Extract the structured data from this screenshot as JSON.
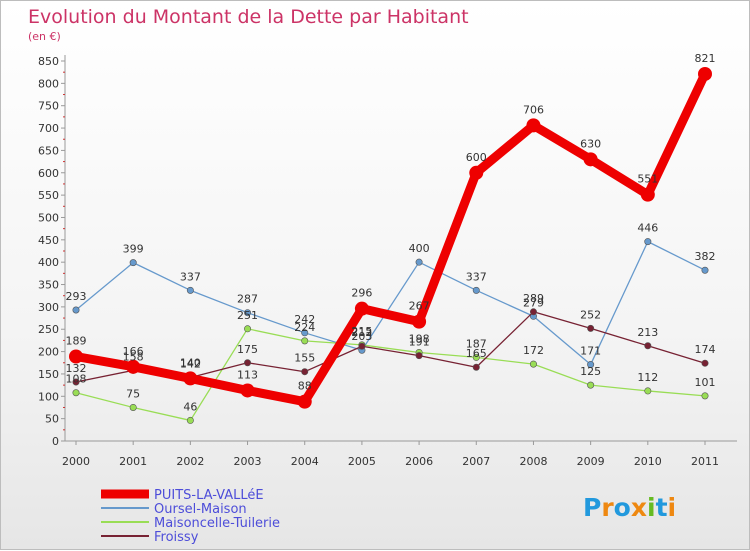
{
  "chart_data": {
    "type": "line",
    "title": "Evolution du Montant de la Dette par Habitant",
    "subtitle": "(en €)",
    "categories": [
      "2000",
      "2001",
      "2002",
      "2003",
      "2004",
      "2005",
      "2006",
      "2007",
      "2008",
      "2009",
      "2010",
      "2011"
    ],
    "ylim": [
      0,
      850
    ],
    "yticks": [
      0,
      50,
      100,
      150,
      200,
      250,
      300,
      350,
      400,
      450,
      500,
      550,
      600,
      650,
      700,
      750,
      800,
      850
    ],
    "grid": false,
    "legend_position": "bottom-left",
    "series": [
      {
        "name": "PUITS-LA-VALLéE",
        "color": "#ee0000",
        "values": [
          189,
          166,
          140,
          113,
          88,
          296,
          267,
          600,
          706,
          630,
          551,
          821
        ]
      },
      {
        "name": "Oursel-Maison",
        "color": "#6699cc",
        "values": [
          293,
          399,
          337,
          287,
          242,
          203,
          400,
          337,
          279,
          171,
          446,
          382
        ]
      },
      {
        "name": "Maisoncelle-Tuilerie",
        "color": "#99dd55",
        "values": [
          108,
          75,
          46,
          251,
          224,
          215,
          198,
          187,
          172,
          125,
          112,
          101
        ]
      },
      {
        "name": "Froissy",
        "color": "#772233",
        "values": [
          132,
          158,
          142,
          175,
          155,
          212,
          191,
          165,
          289,
          252,
          213,
          174
        ]
      }
    ]
  },
  "logo": {
    "letters": [
      "P",
      "r",
      "o",
      "x",
      "i",
      "t",
      "i"
    ],
    "colors": [
      "#2299dd",
      "#ee8811",
      "#2299dd",
      "#ee8811",
      "#66bb22",
      "#2299dd",
      "#ee8811"
    ]
  }
}
